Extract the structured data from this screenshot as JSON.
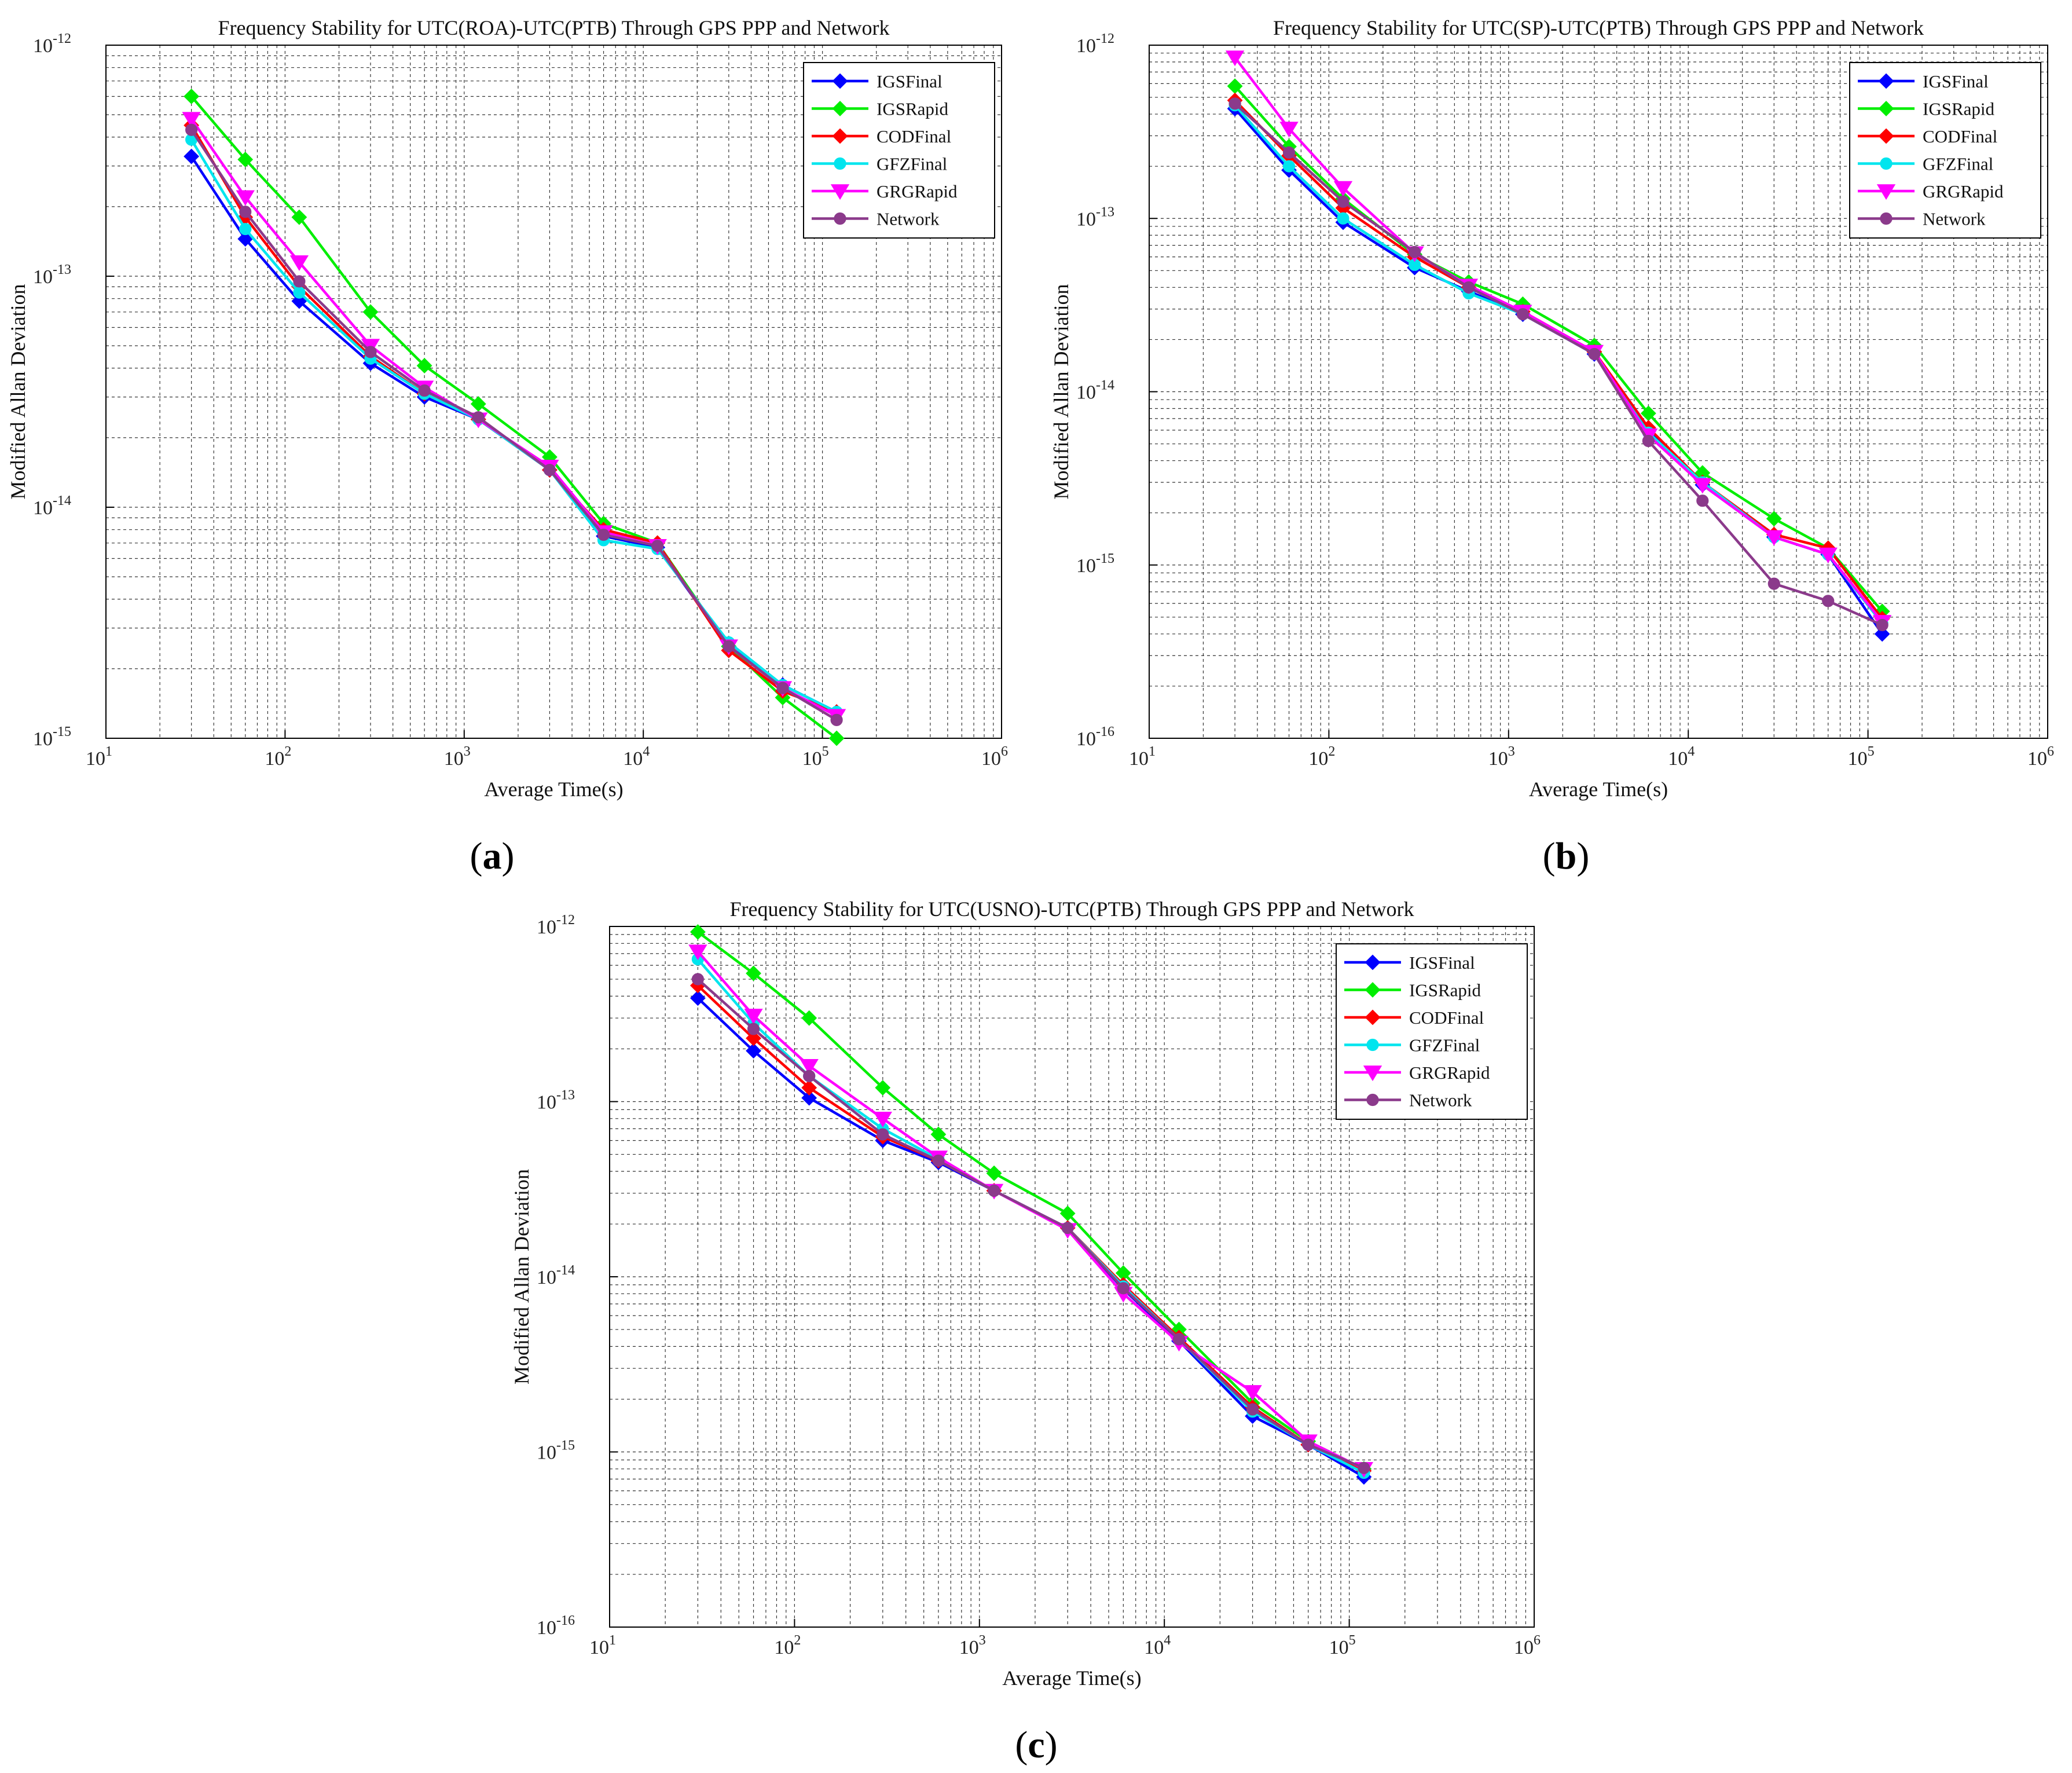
{
  "chart_data": [
    {
      "type": "line",
      "panel_label": "a",
      "title": "Frequency Stability for UTC(ROA)-UTC(PTB) Through GPS PPP and Network",
      "xlabel": "Average Time(s)",
      "ylabel": "Modified Allan Deviation",
      "xscale": "log",
      "yscale": "log",
      "xlim": [
        10,
        1000000
      ],
      "ylim": [
        1e-15,
        1e-12
      ],
      "grid": true,
      "legend_position": "top-right",
      "x_ticks": [
        {
          "base": "10",
          "exp": "1"
        },
        {
          "base": "10",
          "exp": "2"
        },
        {
          "base": "10",
          "exp": "3"
        },
        {
          "base": "10",
          "exp": "4"
        },
        {
          "base": "10",
          "exp": "5"
        },
        {
          "base": "10",
          "exp": "6"
        }
      ],
      "y_ticks": [
        {
          "base": "10",
          "exp": "-15"
        },
        {
          "base": "10",
          "exp": "-14"
        },
        {
          "base": "10",
          "exp": "-13"
        },
        {
          "base": "10",
          "exp": "-12"
        }
      ],
      "x": [
        30,
        60,
        120,
        300,
        600,
        1200,
        3000,
        6000,
        12000,
        30000,
        60000,
        120000
      ],
      "series": [
        {
          "name": "IGSFinal",
          "color": "#0000ff",
          "marker": "diamond",
          "values": [
            3.3e-13,
            1.45e-13,
            7.8e-14,
            4.2e-14,
            3e-14,
            2.4e-14,
            1.45e-14,
            7.5e-15,
            6.7e-15,
            2.5e-15,
            1.7e-15,
            1.3e-15
          ]
        },
        {
          "name": "IGSRapid",
          "color": "#00ee00",
          "marker": "diamond",
          "values": [
            6e-13,
            3.2e-13,
            1.8e-13,
            7e-14,
            4.1e-14,
            2.8e-14,
            1.65e-14,
            8.5e-15,
            7e-15,
            2.5e-15,
            1.5e-15,
            1e-15
          ]
        },
        {
          "name": "CODFinal",
          "color": "#ff0000",
          "marker": "diamond",
          "values": [
            4.5e-13,
            1.8e-13,
            9e-14,
            4.5e-14,
            3.1e-14,
            2.4e-14,
            1.45e-14,
            8e-15,
            7e-15,
            2.4e-15,
            1.6e-15,
            1.3e-15
          ]
        },
        {
          "name": "GFZFinal",
          "color": "#00e5ee",
          "marker": "circle",
          "values": [
            3.9e-13,
            1.6e-13,
            8.5e-14,
            4.4e-14,
            3.1e-14,
            2.4e-14,
            1.45e-14,
            7.2e-15,
            6.6e-15,
            2.6e-15,
            1.7e-15,
            1.3e-15
          ]
        },
        {
          "name": "GRGRapid",
          "color": "#ff00ff",
          "marker": "triangle-down",
          "values": [
            4.8e-13,
            2.2e-13,
            1.15e-13,
            5e-14,
            3.3e-14,
            2.4e-14,
            1.5e-14,
            7.8e-15,
            6.8e-15,
            2.5e-15,
            1.65e-15,
            1.25e-15
          ]
        },
        {
          "name": "Network",
          "color": "#8b3a8b",
          "marker": "circle",
          "values": [
            4.3e-13,
            1.9e-13,
            9.5e-14,
            4.7e-14,
            3.2e-14,
            2.45e-14,
            1.45e-14,
            7.6e-15,
            6.8e-15,
            2.5e-15,
            1.65e-15,
            1.2e-15
          ]
        }
      ]
    },
    {
      "type": "line",
      "panel_label": "b",
      "title": "Frequency Stability for UTC(SP)-UTC(PTB) Through GPS PPP and Network",
      "xlabel": "Average Time(s)",
      "ylabel": "Modified Allan Deviation",
      "xscale": "log",
      "yscale": "log",
      "xlim": [
        10,
        1000000
      ],
      "ylim": [
        1e-16,
        1e-12
      ],
      "grid": true,
      "legend_position": "top-right",
      "x_ticks": [
        {
          "base": "10",
          "exp": "1"
        },
        {
          "base": "10",
          "exp": "2"
        },
        {
          "base": "10",
          "exp": "3"
        },
        {
          "base": "10",
          "exp": "4"
        },
        {
          "base": "10",
          "exp": "5"
        },
        {
          "base": "10",
          "exp": "6"
        }
      ],
      "y_ticks": [
        {
          "base": "10",
          "exp": "-16"
        },
        {
          "base": "10",
          "exp": "-15"
        },
        {
          "base": "10",
          "exp": "-14"
        },
        {
          "base": "10",
          "exp": "-13"
        },
        {
          "base": "10",
          "exp": "-12"
        }
      ],
      "x": [
        30,
        60,
        120,
        300,
        600,
        1200,
        3000,
        6000,
        12000,
        30000,
        60000,
        120000
      ],
      "series": [
        {
          "name": "IGSFinal",
          "color": "#0000ff",
          "marker": "diamond",
          "values": [
            4.3e-13,
            1.9e-13,
            9.5e-14,
            5.2e-14,
            3.8e-14,
            2.8e-14,
            1.65e-14,
            6e-15,
            2.9e-15,
            1.45e-15,
            1.15e-15,
            4e-16
          ]
        },
        {
          "name": "IGSRapid",
          "color": "#00ee00",
          "marker": "diamond",
          "values": [
            5.8e-13,
            2.6e-13,
            1.3e-13,
            6.2e-14,
            4.3e-14,
            3.2e-14,
            1.85e-14,
            7.5e-15,
            3.4e-15,
            1.85e-15,
            1.25e-15,
            5.4e-16
          ]
        },
        {
          "name": "CODFinal",
          "color": "#ff0000",
          "marker": "diamond",
          "values": [
            4.8e-13,
            2.3e-13,
            1.15e-13,
            6e-14,
            4e-14,
            2.9e-14,
            1.7e-14,
            6.2e-15,
            3e-15,
            1.5e-15,
            1.25e-15,
            4.9e-16
          ]
        },
        {
          "name": "GFZFinal",
          "color": "#00e5ee",
          "marker": "circle",
          "values": [
            4.5e-13,
            2e-13,
            1e-13,
            5.4e-14,
            3.7e-14,
            2.8e-14,
            1.65e-14,
            5.8e-15,
            3e-15,
            1.45e-15,
            1.15e-15,
            4.6e-16
          ]
        },
        {
          "name": "GRGRapid",
          "color": "#ff00ff",
          "marker": "triangle-down",
          "values": [
            8.5e-13,
            3.3e-13,
            1.5e-13,
            6.3e-14,
            4.1e-14,
            2.9e-14,
            1.7e-14,
            5.6e-15,
            2.9e-15,
            1.45e-15,
            1.15e-15,
            4.7e-16
          ]
        },
        {
          "name": "Network",
          "color": "#8b3a8b",
          "marker": "circle",
          "values": [
            4.6e-13,
            2.4e-13,
            1.25e-13,
            6.4e-14,
            4e-14,
            2.8e-14,
            1.65e-14,
            5.2e-15,
            2.35e-15,
            7.8e-16,
            6.2e-16,
            4.5e-16
          ]
        }
      ]
    },
    {
      "type": "line",
      "panel_label": "c",
      "title": "Frequency Stability for UTC(USNO)-UTC(PTB) Through GPS PPP and Network",
      "xlabel": "Average Time(s)",
      "ylabel": "Modified Allan Deviation",
      "xscale": "log",
      "yscale": "log",
      "xlim": [
        10,
        1000000
      ],
      "ylim": [
        1e-16,
        1e-12
      ],
      "grid": true,
      "legend_position": "top-right",
      "x_ticks": [
        {
          "base": "10",
          "exp": "1"
        },
        {
          "base": "10",
          "exp": "2"
        },
        {
          "base": "10",
          "exp": "3"
        },
        {
          "base": "10",
          "exp": "4"
        },
        {
          "base": "10",
          "exp": "5"
        },
        {
          "base": "10",
          "exp": "6"
        }
      ],
      "y_ticks": [
        {
          "base": "10",
          "exp": "-16"
        },
        {
          "base": "10",
          "exp": "-15"
        },
        {
          "base": "10",
          "exp": "-14"
        },
        {
          "base": "10",
          "exp": "-13"
        },
        {
          "base": "10",
          "exp": "-12"
        }
      ],
      "x": [
        30,
        60,
        120,
        300,
        600,
        1200,
        3000,
        6000,
        12000,
        30000,
        60000,
        120000
      ],
      "series": [
        {
          "name": "IGSFinal",
          "color": "#0000ff",
          "marker": "diamond",
          "values": [
            3.9e-13,
            1.95e-13,
            1.05e-13,
            6e-14,
            4.5e-14,
            3.1e-14,
            1.9e-14,
            8.5e-15,
            4.3e-15,
            1.6e-15,
            1.1e-15,
            7.2e-16
          ]
        },
        {
          "name": "IGSRapid",
          "color": "#00ee00",
          "marker": "diamond",
          "values": [
            9.3e-13,
            5.4e-13,
            3e-13,
            1.2e-13,
            6.5e-14,
            3.9e-14,
            2.3e-14,
            1.05e-14,
            5e-15,
            1.9e-15,
            1.15e-15,
            8e-16
          ]
        },
        {
          "name": "CODFinal",
          "color": "#ff0000",
          "marker": "diamond",
          "values": [
            4.6e-13,
            2.3e-13,
            1.2e-13,
            6.3e-14,
            4.6e-14,
            3.1e-14,
            1.9e-14,
            9e-15,
            4.5e-15,
            1.8e-15,
            1.1e-15,
            7.8e-16
          ]
        },
        {
          "name": "GFZFinal",
          "color": "#00e5ee",
          "marker": "circle",
          "values": [
            6.5e-13,
            2.8e-13,
            1.4e-13,
            7e-14,
            4.7e-14,
            3.1e-14,
            1.9e-14,
            8.8e-15,
            4.4e-15,
            1.7e-15,
            1.1e-15,
            7.6e-16
          ]
        },
        {
          "name": "GRGRapid",
          "color": "#ff00ff",
          "marker": "triangle-down",
          "values": [
            7.2e-13,
            3.1e-13,
            1.6e-13,
            8e-14,
            4.8e-14,
            3.1e-14,
            1.85e-14,
            8e-15,
            4.2e-15,
            2.2e-15,
            1.15e-15,
            8e-16
          ]
        },
        {
          "name": "Network",
          "color": "#8b3a8b",
          "marker": "circle",
          "values": [
            5e-13,
            2.6e-13,
            1.4e-13,
            6.5e-14,
            4.6e-14,
            3.1e-14,
            1.9e-14,
            8.6e-15,
            4.4e-15,
            1.75e-15,
            1.1e-15,
            8.1e-16
          ]
        }
      ]
    }
  ]
}
